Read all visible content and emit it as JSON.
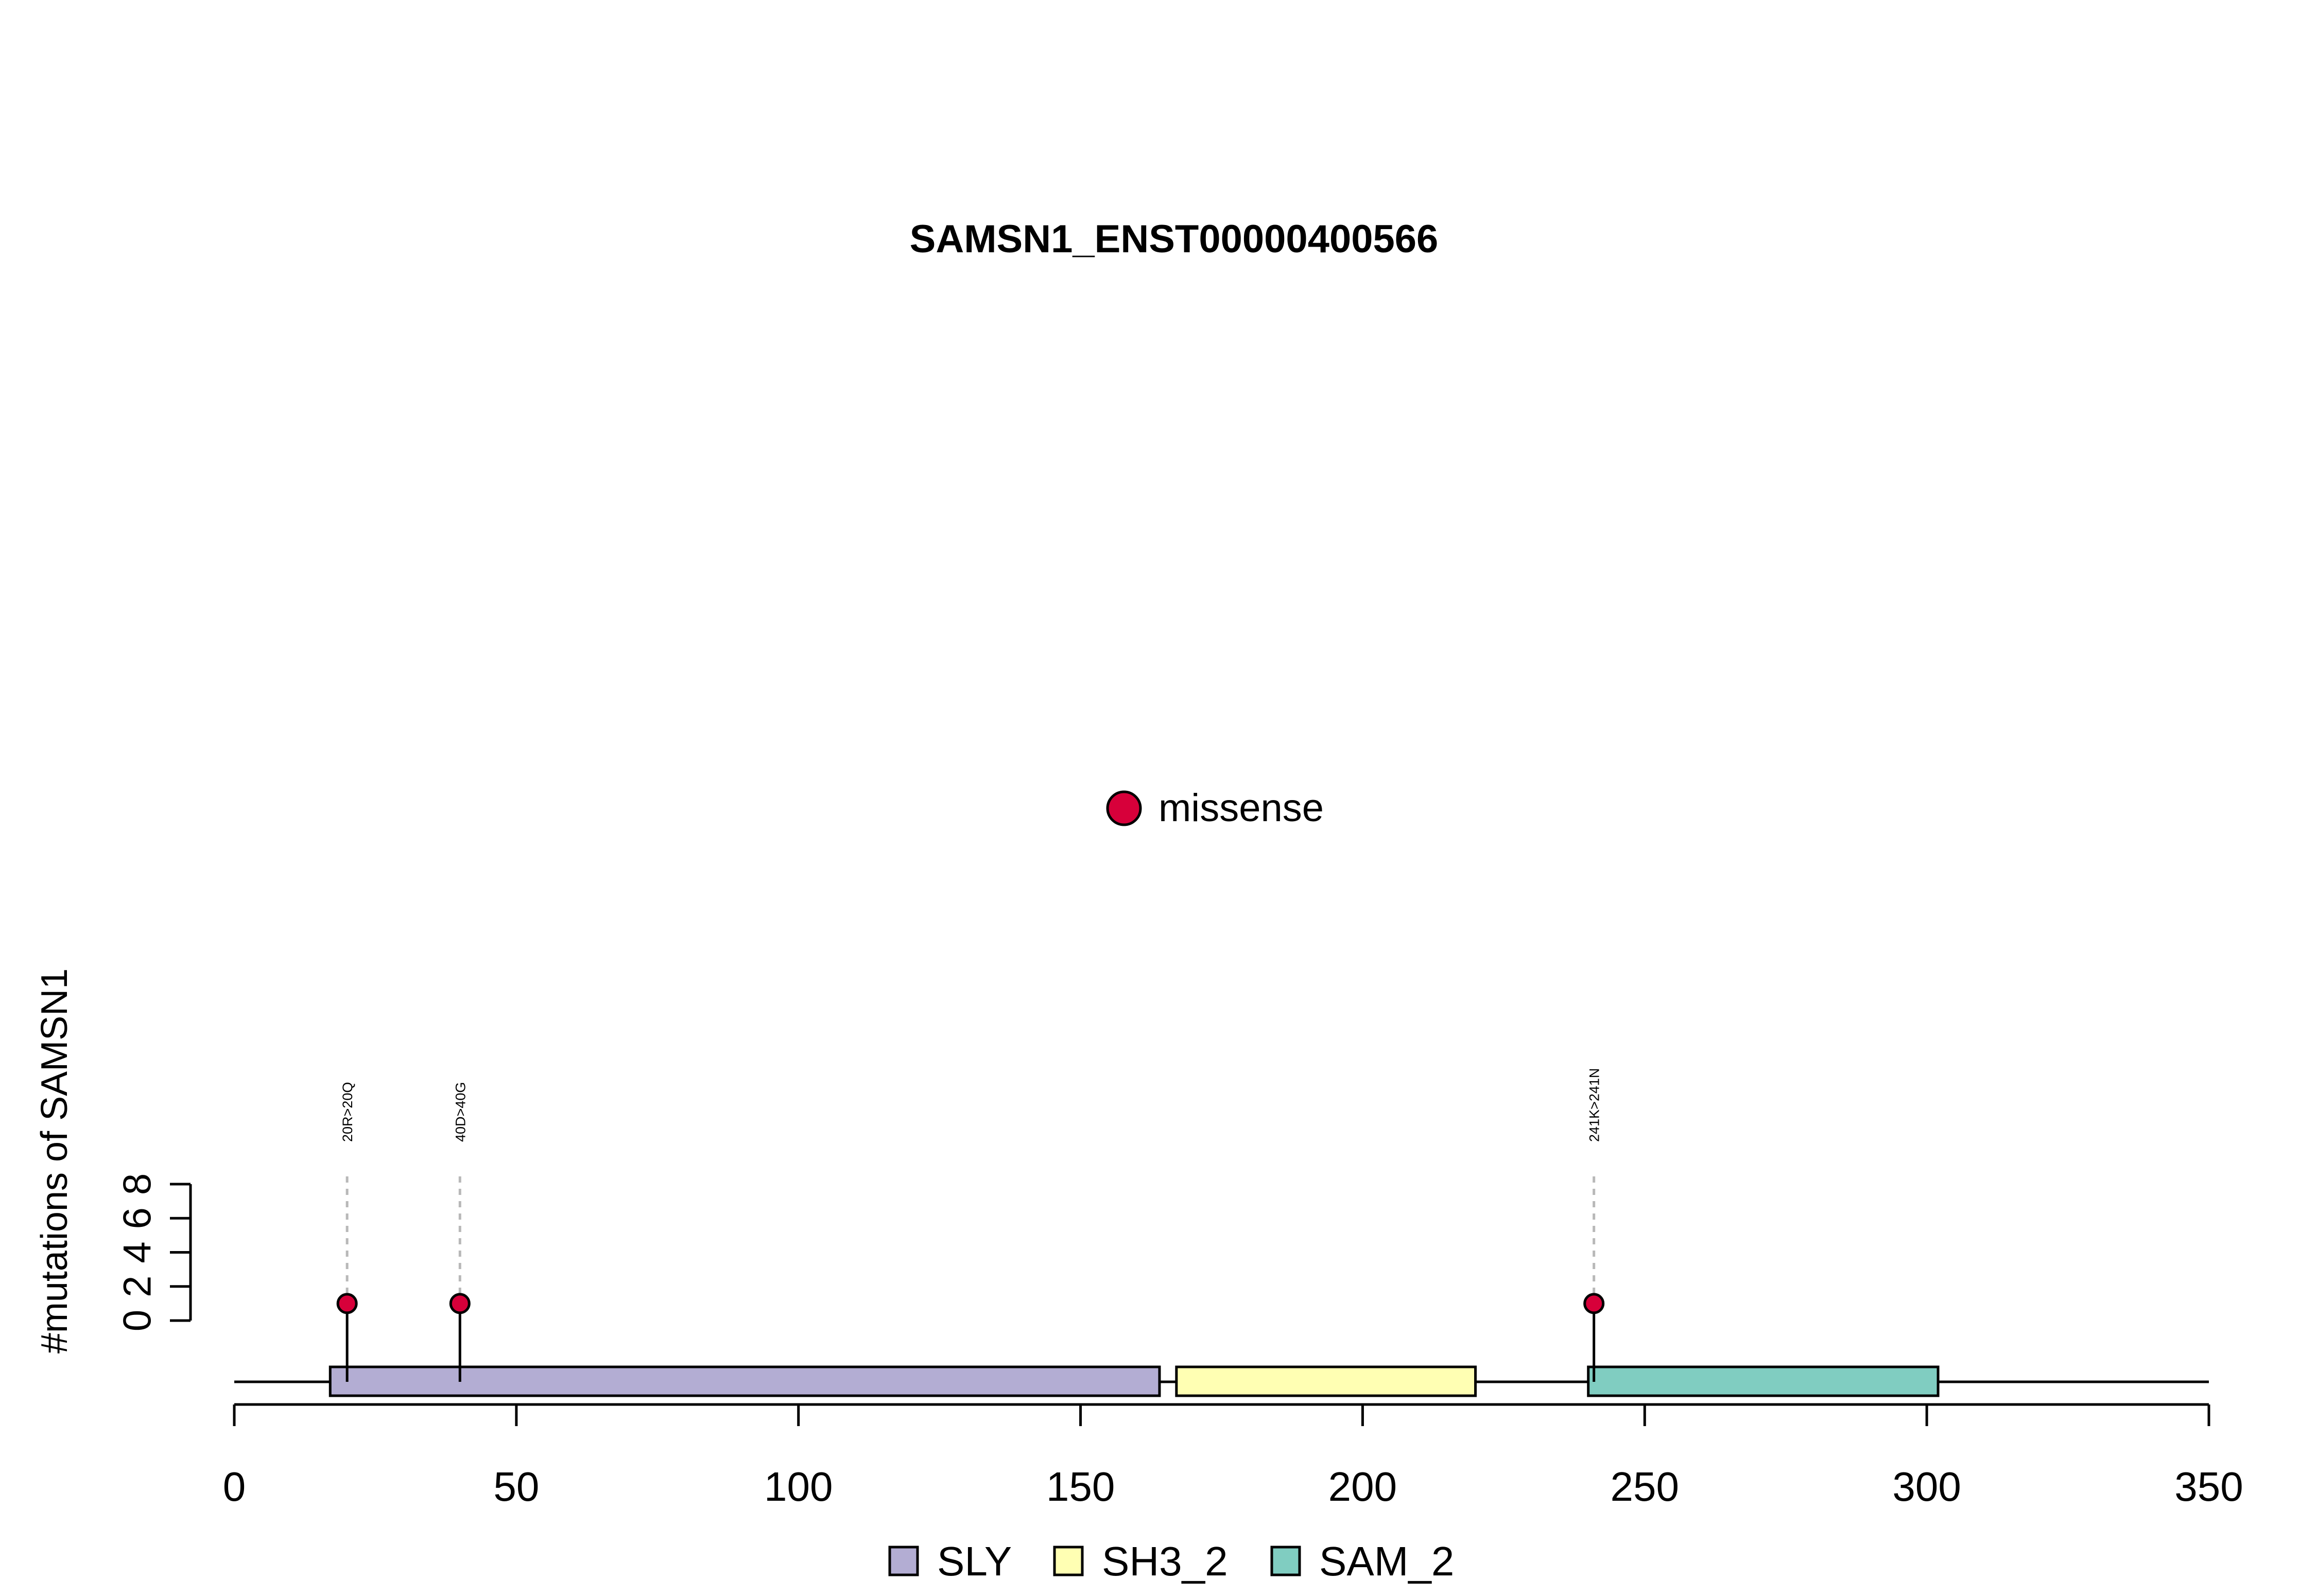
{
  "chart_data": {
    "type": "lollipop",
    "title": "SAMSN1_ENST00000400566",
    "ylabel": "#mutations of SAMSN1",
    "xlabel": "",
    "xlim": [
      0,
      350
    ],
    "x_ticks": [
      0,
      50,
      100,
      150,
      200,
      250,
      300,
      350
    ],
    "ylim": [
      0,
      8
    ],
    "y_ticks": [
      0,
      2,
      4,
      6,
      8
    ],
    "grid": false,
    "mutation_legend": [
      {
        "name": "missense",
        "color": "#D7003A"
      }
    ],
    "mutations": [
      {
        "position": 20,
        "count": 1,
        "label": "20R>20Q",
        "type": "missense"
      },
      {
        "position": 40,
        "count": 1,
        "label": "40D>40G",
        "type": "missense"
      },
      {
        "position": 241,
        "count": 1,
        "label": "241K>241N",
        "type": "missense"
      }
    ],
    "domains": [
      {
        "name": "SLY",
        "start": 17,
        "end": 164,
        "color": "#B3ADD3"
      },
      {
        "name": "SH3_2",
        "start": 167,
        "end": 220,
        "color": "#FFFFB3"
      },
      {
        "name": "SAM_2",
        "start": 240,
        "end": 302,
        "color": "#80CDC1"
      }
    ],
    "domain_legend_placement": "bottom",
    "mutation_legend_placement": "center"
  }
}
